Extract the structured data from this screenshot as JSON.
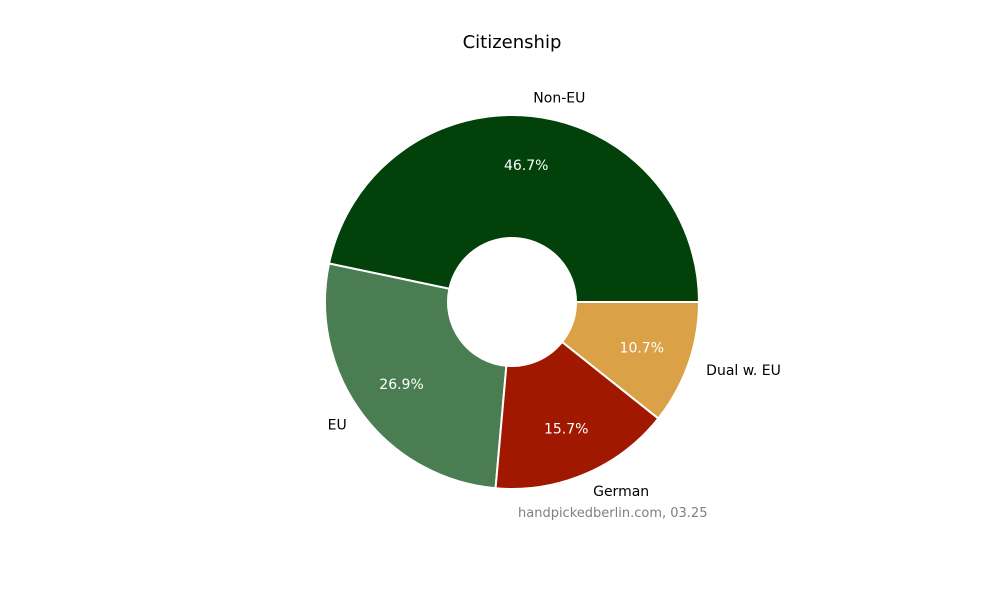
{
  "chart_data": {
    "type": "pie",
    "variant": "donut",
    "title": "Citizenship",
    "categories": [
      "Non-EU",
      "EU",
      "German",
      "Dual w. EU"
    ],
    "values": [
      46.7,
      26.9,
      15.7,
      10.7
    ],
    "labels": [
      "46.7%",
      "26.9%",
      "15.7%",
      "10.7%"
    ],
    "colors": [
      "#02420a",
      "#4a7e52",
      "#a01800",
      "#dba146"
    ],
    "start_angle": 0,
    "direction": "counterclockwise",
    "legend": "none",
    "annotation": "handpickedberlin.com, 03.25"
  }
}
